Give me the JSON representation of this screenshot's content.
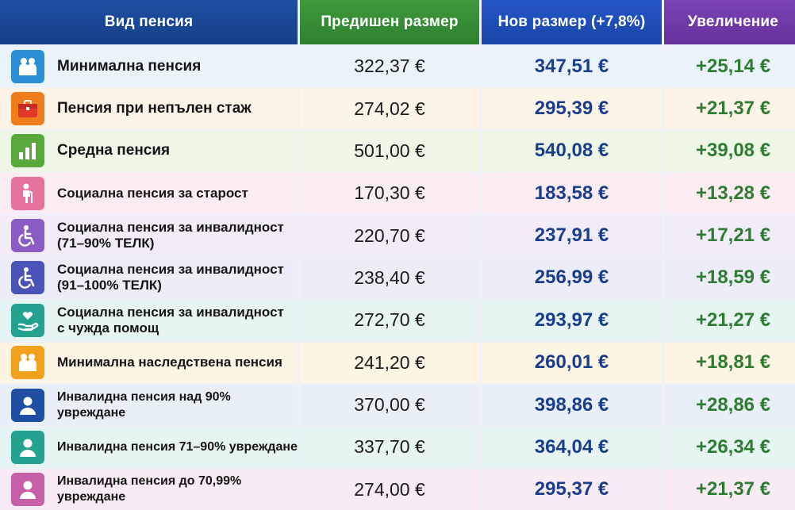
{
  "headers": {
    "type": "Вид пенсия",
    "previous": "Предишен размер",
    "new": "Нов размер (+7,8%)",
    "increase": "Увеличение"
  },
  "rows": [
    {
      "label": "Минимална пенсия",
      "previous": "322,37 €",
      "new": "347,51 €",
      "increase": "+25,14 €",
      "icon": "family-icon",
      "icon_color": "#2a8fd6",
      "row_bg": "#eaf3fb"
    },
    {
      "label": "Пенсия при непълен стаж",
      "previous": "274,02 €",
      "new": "295,39 €",
      "increase": "+21,37 €",
      "icon": "briefcase-icon",
      "icon_color": "#f07d1c",
      "row_bg": "#fdf3e6"
    },
    {
      "label": "Средна пенсия",
      "previous": "501,00 €",
      "new": "540,08 €",
      "increase": "+39,08 €",
      "icon": "bar-chart-icon",
      "icon_color": "#58a83c",
      "row_bg": "#eef7e6"
    },
    {
      "label": "Социална пенсия за старост",
      "previous": "170,30 €",
      "new": "183,58 €",
      "increase": "+13,28 €",
      "icon": "elderly-icon",
      "icon_color": "#e4729c",
      "row_bg": "#fbecf1"
    },
    {
      "label": "Социална пенсия за инвалидност\n(71–90% ТЕЛК)",
      "previous": "220,70 €",
      "new": "237,91 €",
      "increase": "+17,21 €",
      "icon": "wheelchair-icon",
      "icon_color": "#8a5cc4",
      "row_bg": "#f1ecf8"
    },
    {
      "label": "Социална пенсия за инвалидност\n(91–100% ТЕЛК)",
      "previous": "238,40 €",
      "new": "256,99 €",
      "increase": "+18,59 €",
      "icon": "wheelchair-icon",
      "icon_color": "#4a53b8",
      "row_bg": "#ecedf8"
    },
    {
      "label": "Социална пенсия за инвалидност\nс чужда помощ",
      "previous": "272,70 €",
      "new": "293,97 €",
      "increase": "+21,27 €",
      "icon": "care-hand-icon",
      "icon_color": "#23a28f",
      "row_bg": "#e7f5f2"
    },
    {
      "label": "Минимална наследствена пенсия",
      "previous": "241,20 €",
      "new": "260,01 €",
      "increase": "+18,81 €",
      "icon": "family-icon",
      "icon_color": "#f2a11c",
      "row_bg": "#fdf4e3"
    },
    {
      "label": "Инвалидна пенсия над 90% увреждане",
      "previous": "370,00 €",
      "new": "398,86 €",
      "increase": "+28,86 €",
      "icon": "person-icon",
      "icon_color": "#1e4fa3",
      "row_bg": "#e9eff8"
    },
    {
      "label": "Инвалидна пенсия 71–90% увреждане",
      "previous": "337,70 €",
      "new": "364,04 €",
      "increase": "+26,34 €",
      "icon": "person-icon",
      "icon_color": "#23a28f",
      "row_bg": "#e7f5f2"
    },
    {
      "label": "Инвалидна пенсия до 70,99% увреждане",
      "previous": "274,00 €",
      "new": "295,37 €",
      "increase": "+21,37 €",
      "icon": "person-icon",
      "icon_color": "#c75fa9",
      "row_bg": "#f8ebf4"
    }
  ]
}
